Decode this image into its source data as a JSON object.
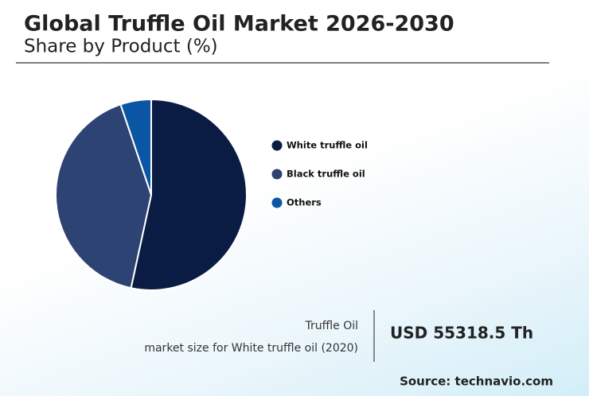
{
  "chart_data": {
    "type": "pie",
    "title": "Global Truffle Oil Market 2026-2030",
    "subtitle": "Share by Product (%)",
    "categories": [
      "White truffle oil",
      "Black truffle oil",
      "Others"
    ],
    "values": [
      53.4,
      41.4,
      5.2
    ],
    "colors": [
      "#0b1c44",
      "#2d4373",
      "#0b56a4"
    ]
  },
  "summary": {
    "product": "Truffle Oil",
    "description": "market size for White truffle oil (2020)",
    "value": "USD 55318.5 Th"
  },
  "source": "Source: technavio.com"
}
